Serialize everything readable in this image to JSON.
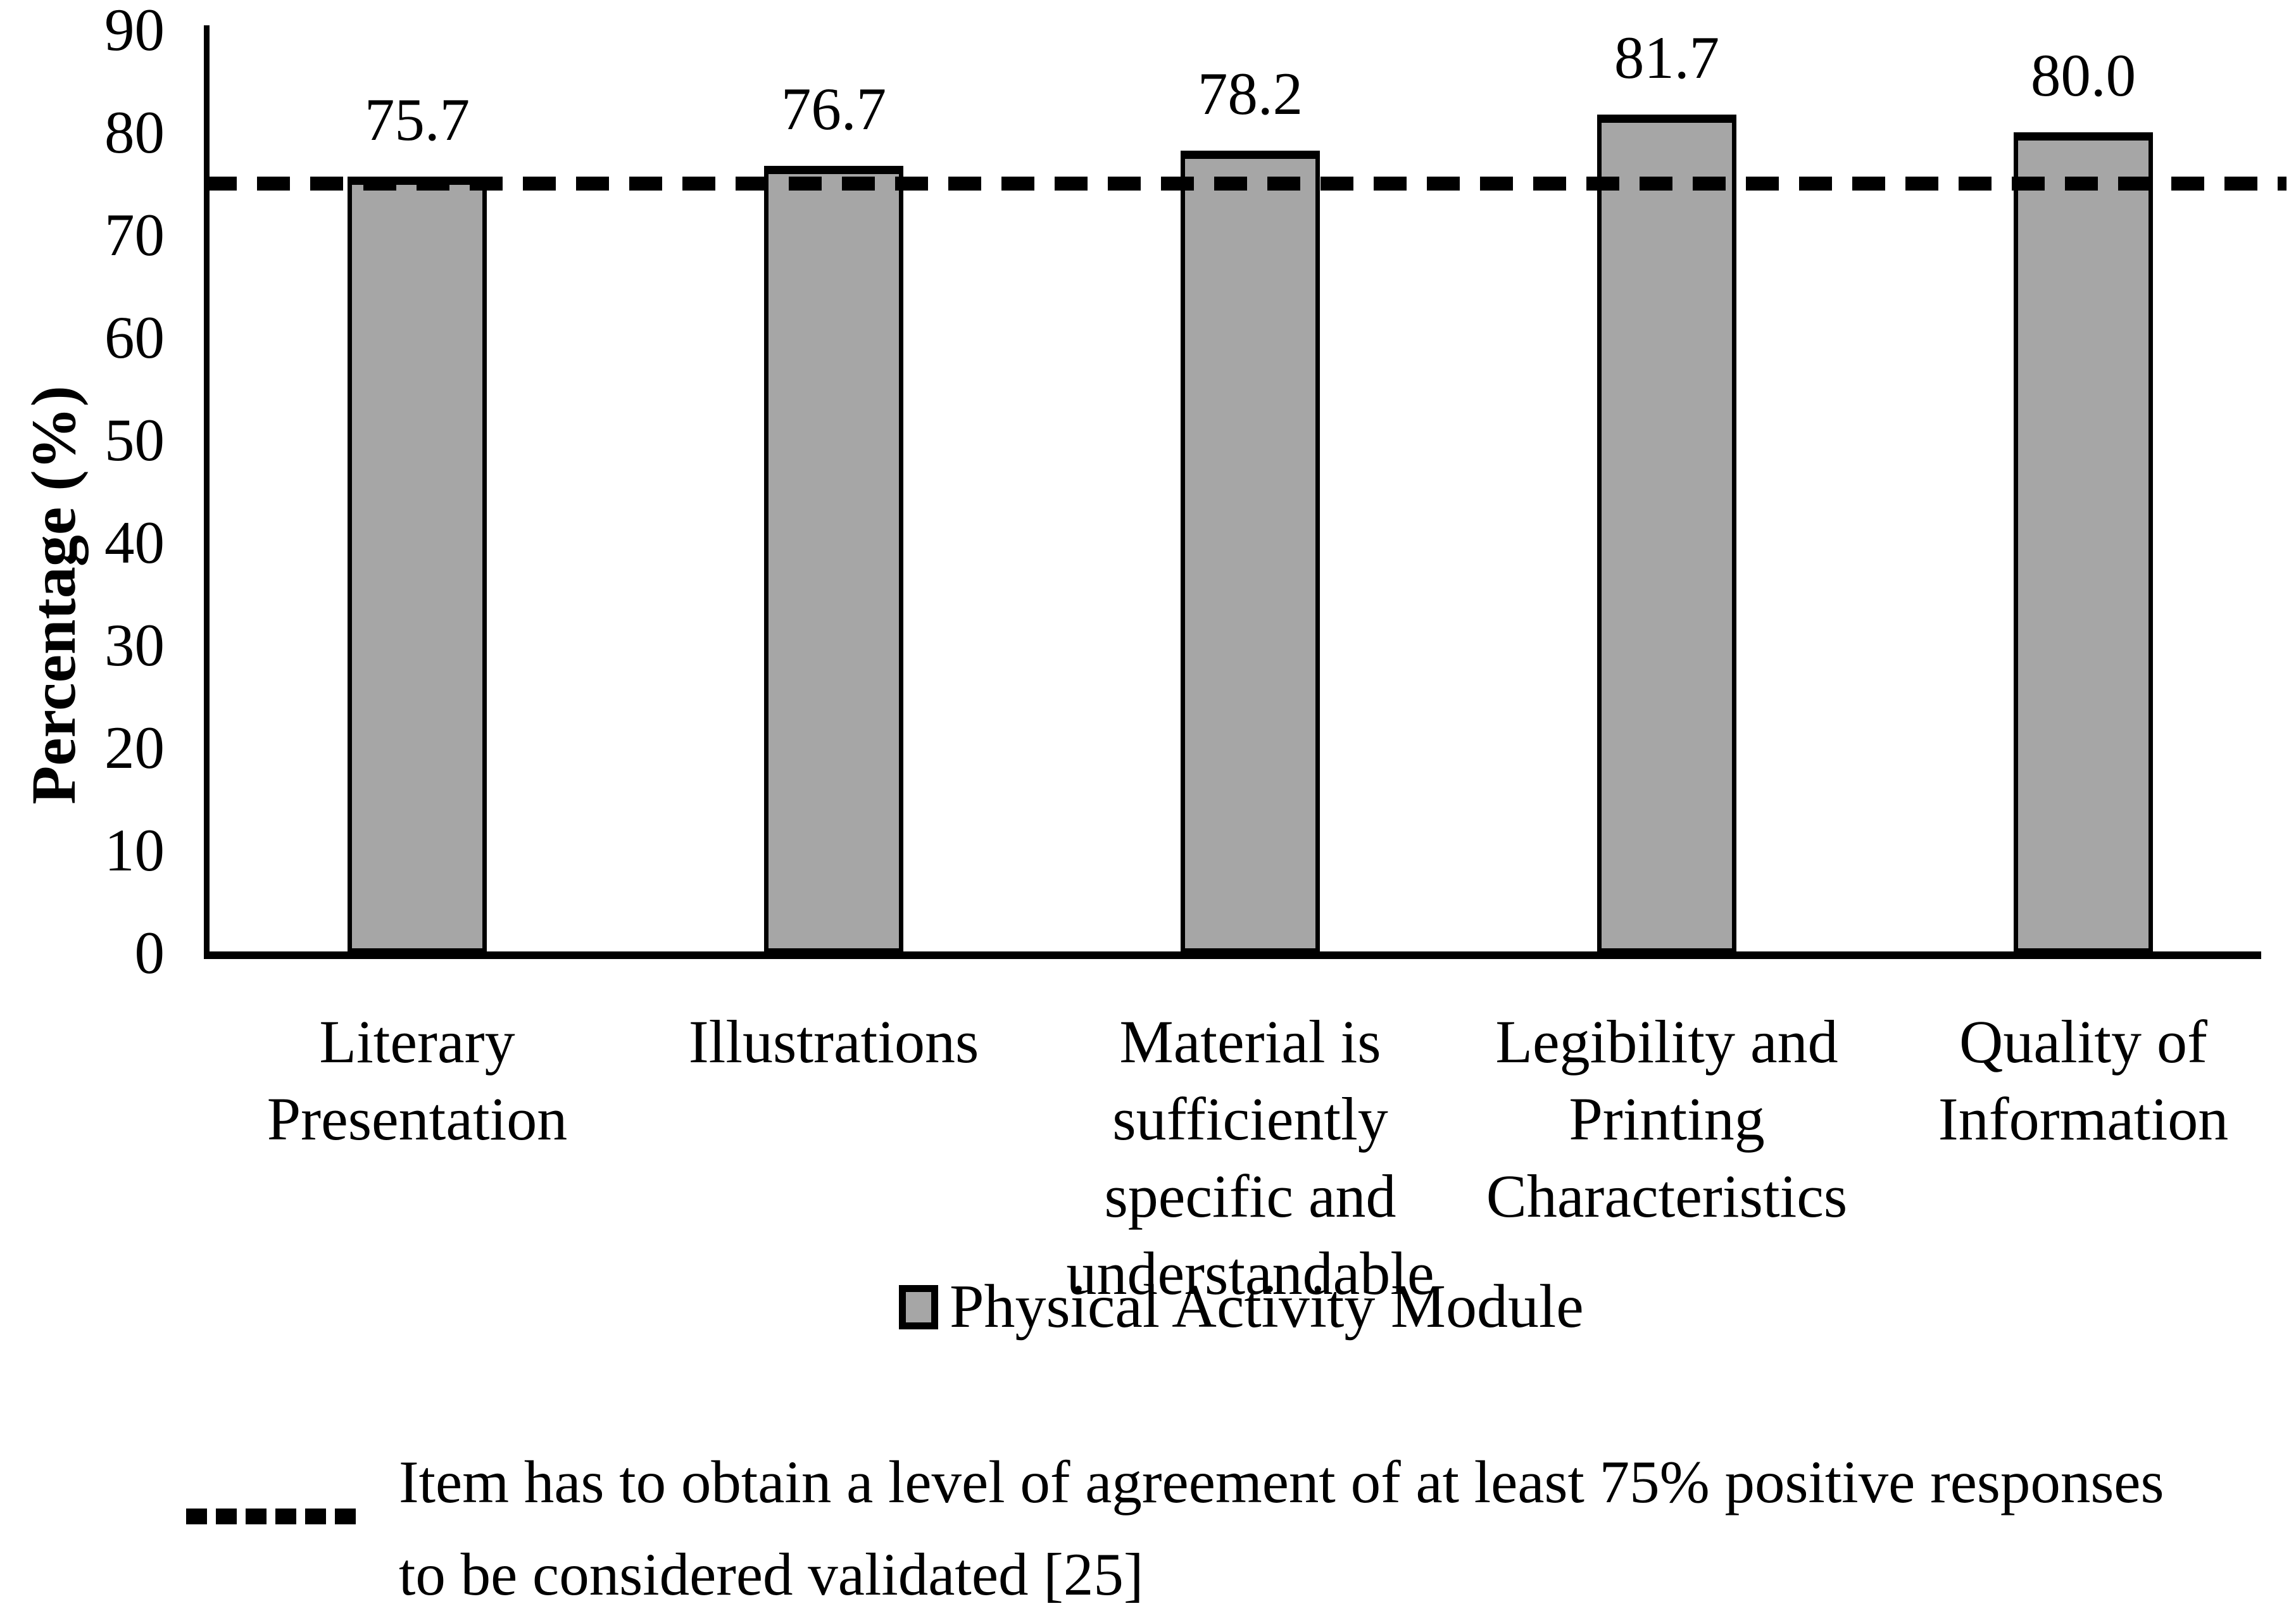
{
  "chart_data": {
    "type": "bar",
    "title": "",
    "xlabel": "",
    "ylabel": "Percentage (%)",
    "ylim": [
      0,
      90
    ],
    "yticks": [
      0,
      10,
      20,
      30,
      40,
      50,
      60,
      70,
      80,
      90
    ],
    "grid": false,
    "threshold": 75,
    "bar_color": "#a6a6a6",
    "bar_border_color": "#000000",
    "threshold_color": "#000000",
    "categories": [
      {
        "text": "Literary Presentation",
        "lines": [
          "Literary",
          "Presentation"
        ]
      },
      {
        "text": "Illustrations",
        "lines": [
          "Illustrations"
        ]
      },
      {
        "text": "Material is sufficiently specific and understandable",
        "lines": [
          "Material is",
          "sufficiently",
          "specific and",
          "understandable"
        ]
      },
      {
        "text": "Legibility and Printing Characteristics",
        "lines": [
          "Legibility and",
          "Printing",
          "Characteristics"
        ]
      },
      {
        "text": "Quality of Information",
        "lines": [
          "Quality of",
          "Information"
        ]
      }
    ],
    "values": [
      75.7,
      76.7,
      78.2,
      81.7,
      80.0
    ],
    "value_labels": [
      "75.7",
      "76.7",
      "78.2",
      "81.7",
      "80.0"
    ],
    "series": [
      {
        "name": "Physical Activity Module",
        "values": [
          75.7,
          76.7,
          78.2,
          81.7,
          80.0
        ]
      }
    ],
    "legend": {
      "label": "Physical Activity Module",
      "position": "bottom"
    }
  },
  "footnote": {
    "line1": "Item has to obtain a level of agreement of at least 75% positive responses",
    "line2": "to be considered validated [25]"
  }
}
